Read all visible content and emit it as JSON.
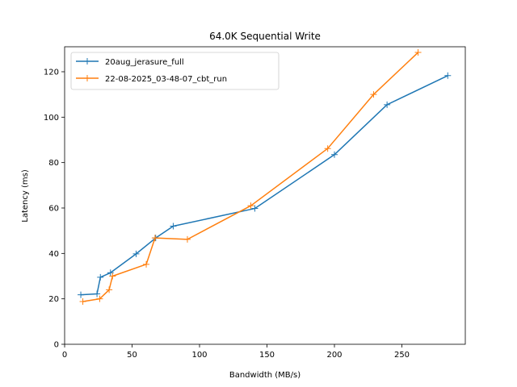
{
  "chart_data": {
    "type": "line",
    "title": "64.0K  Sequential Write",
    "xlabel": "Bandwidth (MB/s)",
    "ylabel": "Latency (ms)",
    "xlim": [
      0,
      297
    ],
    "ylim": [
      0,
      131
    ],
    "xticks": [
      0,
      50,
      100,
      150,
      200,
      250
    ],
    "yticks": [
      0,
      20,
      40,
      60,
      80,
      100,
      120
    ],
    "grid": false,
    "legend_position": "top-left",
    "series": [
      {
        "name": "20aug_jerasure_full",
        "color": "#1f77b4",
        "marker": "plus",
        "points": [
          {
            "x": 12,
            "y": 21.8
          },
          {
            "x": 24,
            "y": 22.2
          },
          {
            "x": 26.5,
            "y": 29.5
          },
          {
            "x": 34,
            "y": 31.5
          },
          {
            "x": 53,
            "y": 39.8
          },
          {
            "x": 67.5,
            "y": 46.8
          },
          {
            "x": 80.5,
            "y": 52.0
          },
          {
            "x": 141,
            "y": 59.8
          },
          {
            "x": 200,
            "y": 83.5
          },
          {
            "x": 239,
            "y": 105.5
          },
          {
            "x": 284,
            "y": 118.3
          }
        ]
      },
      {
        "name": "22-08-2025_03-48-07_cbt_run",
        "color": "#ff7f0e",
        "marker": "plus",
        "points": [
          {
            "x": 13.5,
            "y": 18.8
          },
          {
            "x": 26,
            "y": 20.0
          },
          {
            "x": 33,
            "y": 24.0
          },
          {
            "x": 35.5,
            "y": 30.0
          },
          {
            "x": 60.5,
            "y": 35.2
          },
          {
            "x": 67,
            "y": 46.8
          },
          {
            "x": 91,
            "y": 46.2
          },
          {
            "x": 138,
            "y": 61.0
          },
          {
            "x": 195,
            "y": 86.2
          },
          {
            "x": 229,
            "y": 110.0
          },
          {
            "x": 262,
            "y": 128.5
          }
        ]
      }
    ]
  }
}
